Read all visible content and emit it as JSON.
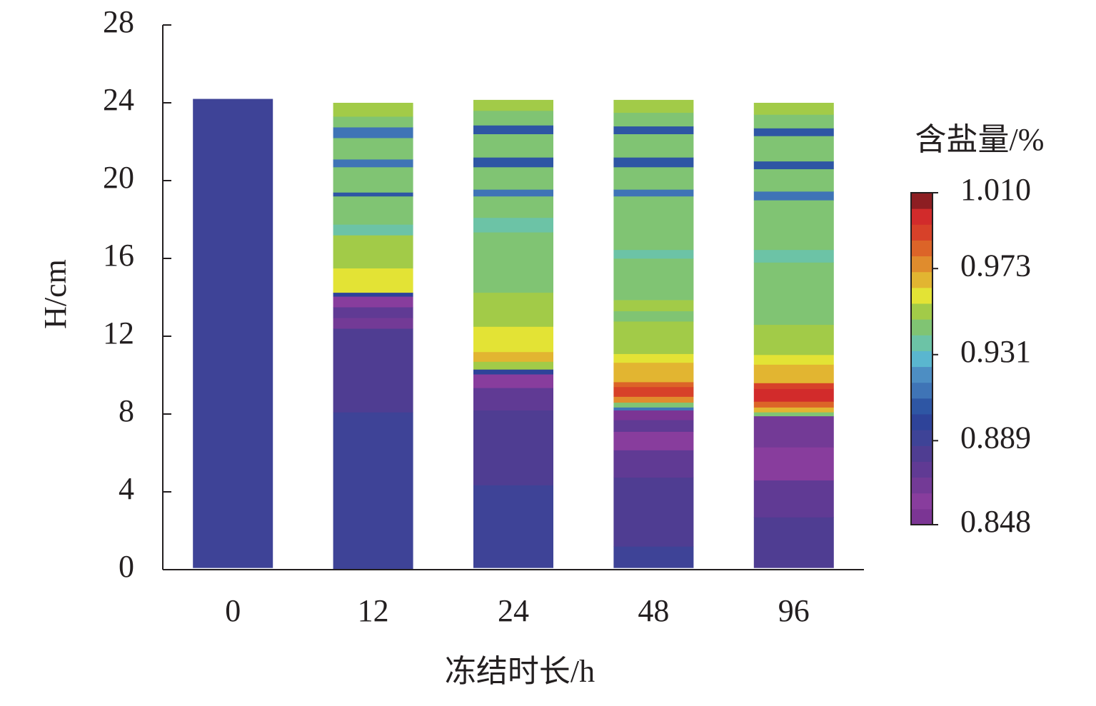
{
  "chart_data": {
    "type": "layered-bar",
    "x_label": "冻结时长/h",
    "y_label": "H/cm",
    "categories": [
      "0",
      "12",
      "24",
      "48",
      "96"
    ],
    "ylim": [
      0,
      28
    ],
    "yticks": [
      0,
      4,
      8,
      12,
      16,
      20,
      24,
      28
    ],
    "layers": [
      [
        [
          0.1,
          24.2,
          0.893
        ]
      ],
      [
        [
          0.05,
          8.1,
          0.893
        ],
        [
          8.1,
          12.4,
          0.884
        ],
        [
          12.4,
          12.95,
          0.868
        ],
        [
          12.95,
          13.5,
          0.876
        ],
        [
          13.5,
          14.05,
          0.86
        ],
        [
          14.05,
          14.25,
          0.901
        ],
        [
          14.25,
          15.5,
          0.958
        ],
        [
          15.5,
          17.2,
          0.949
        ],
        [
          17.2,
          17.75,
          0.933
        ],
        [
          17.75,
          19.2,
          0.941
        ],
        [
          19.2,
          19.4,
          0.909
        ],
        [
          19.4,
          20.7,
          0.941
        ],
        [
          20.7,
          21.1,
          0.917
        ],
        [
          21.1,
          22.2,
          0.941
        ],
        [
          22.2,
          22.75,
          0.917
        ],
        [
          22.75,
          23.3,
          0.941
        ],
        [
          23.3,
          24.0,
          0.949
        ]
      ],
      [
        [
          0.1,
          4.35,
          0.893
        ],
        [
          4.35,
          8.2,
          0.884
        ],
        [
          8.2,
          9.35,
          0.876
        ],
        [
          9.35,
          10.05,
          0.86
        ],
        [
          10.05,
          10.3,
          0.901
        ],
        [
          10.3,
          10.7,
          0.949
        ],
        [
          10.7,
          11.2,
          0.966
        ],
        [
          11.2,
          12.5,
          0.958
        ],
        [
          12.5,
          14.25,
          0.949
        ],
        [
          14.25,
          17.35,
          0.941
        ],
        [
          17.35,
          18.1,
          0.933
        ],
        [
          18.1,
          19.2,
          0.941
        ],
        [
          19.2,
          19.55,
          0.917
        ],
        [
          19.55,
          20.7,
          0.941
        ],
        [
          20.7,
          21.2,
          0.909
        ],
        [
          21.2,
          22.4,
          0.941
        ],
        [
          22.4,
          22.85,
          0.909
        ],
        [
          22.85,
          23.6,
          0.941
        ],
        [
          23.6,
          24.15,
          0.949
        ]
      ],
      [
        [
          0.1,
          1.2,
          0.893
        ],
        [
          1.2,
          4.75,
          0.884
        ],
        [
          4.75,
          6.15,
          0.876
        ],
        [
          6.15,
          7.1,
          0.86
        ],
        [
          7.1,
          7.7,
          0.876
        ],
        [
          7.7,
          8.2,
          0.852
        ],
        [
          8.2,
          8.35,
          0.917
        ],
        [
          8.35,
          8.6,
          0.941
        ],
        [
          8.6,
          8.9,
          0.974
        ],
        [
          8.9,
          9.4,
          0.99
        ],
        [
          9.4,
          9.65,
          0.982
        ],
        [
          9.65,
          10.65,
          0.966
        ],
        [
          10.65,
          11.1,
          0.958
        ],
        [
          11.1,
          12.77,
          0.949
        ],
        [
          12.77,
          13.3,
          0.941
        ],
        [
          13.3,
          13.87,
          0.949
        ],
        [
          13.87,
          16.0,
          0.941
        ],
        [
          16.0,
          16.45,
          0.933
        ],
        [
          16.45,
          19.2,
          0.941
        ],
        [
          19.2,
          19.55,
          0.917
        ],
        [
          19.55,
          20.7,
          0.941
        ],
        [
          20.7,
          21.2,
          0.909
        ],
        [
          21.2,
          22.4,
          0.941
        ],
        [
          22.4,
          22.8,
          0.909
        ],
        [
          22.8,
          23.5,
          0.941
        ],
        [
          23.5,
          24.15,
          0.949
        ]
      ],
      [
        [
          0.1,
          2.7,
          0.884
        ],
        [
          2.7,
          4.6,
          0.876
        ],
        [
          4.6,
          6.3,
          0.86
        ],
        [
          6.3,
          7.9,
          0.868
        ],
        [
          7.9,
          8.1,
          0.941
        ],
        [
          8.1,
          8.35,
          0.966
        ],
        [
          8.35,
          8.65,
          0.982
        ],
        [
          8.65,
          9.3,
          0.998
        ],
        [
          9.3,
          9.6,
          0.99
        ],
        [
          9.6,
          10.55,
          0.966
        ],
        [
          10.55,
          11.05,
          0.958
        ],
        [
          11.05,
          12.6,
          0.949
        ],
        [
          12.6,
          15.8,
          0.941
        ],
        [
          15.8,
          16.45,
          0.933
        ],
        [
          16.45,
          19.0,
          0.941
        ],
        [
          19.0,
          19.45,
          0.917
        ],
        [
          19.45,
          20.6,
          0.941
        ],
        [
          20.6,
          21.0,
          0.909
        ],
        [
          21.0,
          22.3,
          0.941
        ],
        [
          22.3,
          22.7,
          0.909
        ],
        [
          22.7,
          23.4,
          0.941
        ],
        [
          23.4,
          24.0,
          0.949
        ]
      ]
    ],
    "colormap": {
      "label": "含盐量/%",
      "clim": [
        0.848,
        1.01
      ],
      "colors": [
        "#7b3594",
        "#883d9d",
        "#733a96",
        "#603a94",
        "#4f3d92",
        "#3e4397",
        "#2e4399",
        "#2e56a4",
        "#3f74b6",
        "#4d8ec3",
        "#5ab6cf",
        "#6cc3a6",
        "#80c473",
        "#a2cb48",
        "#e3e335",
        "#e2b531",
        "#e08c2d",
        "#dc6428",
        "#d74129",
        "#d22b2b",
        "#8d1e22"
      ],
      "ticks": [
        0.848,
        0.889,
        0.931,
        0.973,
        {
          "value": 1.01,
          "label": "1.010"
        }
      ]
    }
  }
}
